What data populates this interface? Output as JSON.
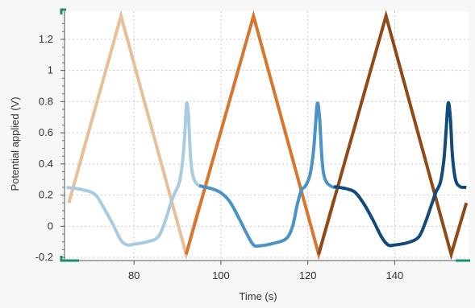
{
  "chart_data": {
    "type": "line",
    "xlabel": "Time (s)",
    "ylabel": "Potential applied (V)",
    "xlim": [
      64,
      157
    ],
    "ylim": [
      -0.22,
      1.38
    ],
    "grid": true,
    "x_ticks": [
      80,
      100,
      120,
      140
    ],
    "y_ticks": [
      -0.2,
      0,
      0.2,
      0.4,
      0.6,
      0.8,
      1,
      1.2
    ],
    "x_tick_labels": [
      "80",
      "100",
      "120",
      "140"
    ],
    "y_tick_labels": [
      "-0.2",
      "0",
      "0.2",
      "0.4",
      "0.6",
      "0.8",
      "1",
      "1.2"
    ],
    "series": [
      {
        "color": "#e8bf98",
        "points": [
          [
            65,
            0.15
          ],
          [
            77,
            1.35
          ],
          [
            92,
            -0.18
          ],
          [
            95,
            0.13
          ]
        ]
      },
      {
        "color": "#d8762e",
        "points": [
          [
            92,
            -0.18
          ],
          [
            107.5,
            1.35
          ],
          [
            122.5,
            -0.18
          ],
          [
            126,
            0.17
          ]
        ]
      },
      {
        "color": "#8f4a18",
        "points": [
          [
            122.5,
            -0.18
          ],
          [
            138,
            1.35
          ],
          [
            153,
            -0.18
          ],
          [
            156.5,
            0.15
          ]
        ]
      },
      {
        "color": "#a9cbe2",
        "points": [
          [
            64.5,
            0.25
          ],
          [
            68,
            0.235
          ],
          [
            71,
            0.205
          ],
          [
            73,
            0.12
          ],
          [
            75,
            0.02
          ],
          [
            77,
            -0.09
          ],
          [
            78.5,
            -0.12
          ],
          [
            80,
            -0.115
          ],
          [
            83,
            -0.1
          ],
          [
            85.5,
            -0.07
          ],
          [
            87,
            0.02
          ],
          [
            88.5,
            0.15
          ],
          [
            89.5,
            0.22
          ],
          [
            90.5,
            0.29
          ],
          [
            91.3,
            0.45
          ],
          [
            91.8,
            0.65
          ],
          [
            92.1,
            0.79
          ],
          [
            92.5,
            0.72
          ],
          [
            93,
            0.45
          ],
          [
            93.5,
            0.33
          ],
          [
            94.5,
            0.27
          ],
          [
            96,
            0.255
          ]
        ]
      },
      {
        "color": "#4a93c4",
        "points": [
          [
            95,
            0.26
          ],
          [
            98,
            0.24
          ],
          [
            100,
            0.215
          ],
          [
            102,
            0.16
          ],
          [
            104,
            0.06
          ],
          [
            106,
            -0.05
          ],
          [
            107.5,
            -0.12
          ],
          [
            109,
            -0.125
          ],
          [
            112,
            -0.11
          ],
          [
            115,
            -0.08
          ],
          [
            116.5,
            0.0
          ],
          [
            117.5,
            0.13
          ],
          [
            118.5,
            0.23
          ],
          [
            119.5,
            0.26
          ],
          [
            120.5,
            0.33
          ],
          [
            121.3,
            0.48
          ],
          [
            121.8,
            0.66
          ],
          [
            122.2,
            0.79
          ],
          [
            122.7,
            0.7
          ],
          [
            123.3,
            0.42
          ],
          [
            124,
            0.3
          ],
          [
            125.5,
            0.255
          ],
          [
            127,
            0.25
          ]
        ]
      },
      {
        "color": "#124a7c",
        "points": [
          [
            126,
            0.255
          ],
          [
            129,
            0.24
          ],
          [
            131,
            0.215
          ],
          [
            133,
            0.14
          ],
          [
            135,
            0.04
          ],
          [
            137,
            -0.07
          ],
          [
            138.5,
            -0.12
          ],
          [
            140,
            -0.12
          ],
          [
            143,
            -0.105
          ],
          [
            145.5,
            -0.07
          ],
          [
            147,
            0.02
          ],
          [
            148.5,
            0.14
          ],
          [
            149.5,
            0.22
          ],
          [
            150.5,
            0.28
          ],
          [
            151.3,
            0.42
          ],
          [
            151.8,
            0.6
          ],
          [
            152.3,
            0.79
          ],
          [
            152.8,
            0.7
          ],
          [
            153.3,
            0.45
          ],
          [
            154,
            0.3
          ],
          [
            155,
            0.255
          ],
          [
            156.5,
            0.25
          ]
        ]
      }
    ]
  }
}
